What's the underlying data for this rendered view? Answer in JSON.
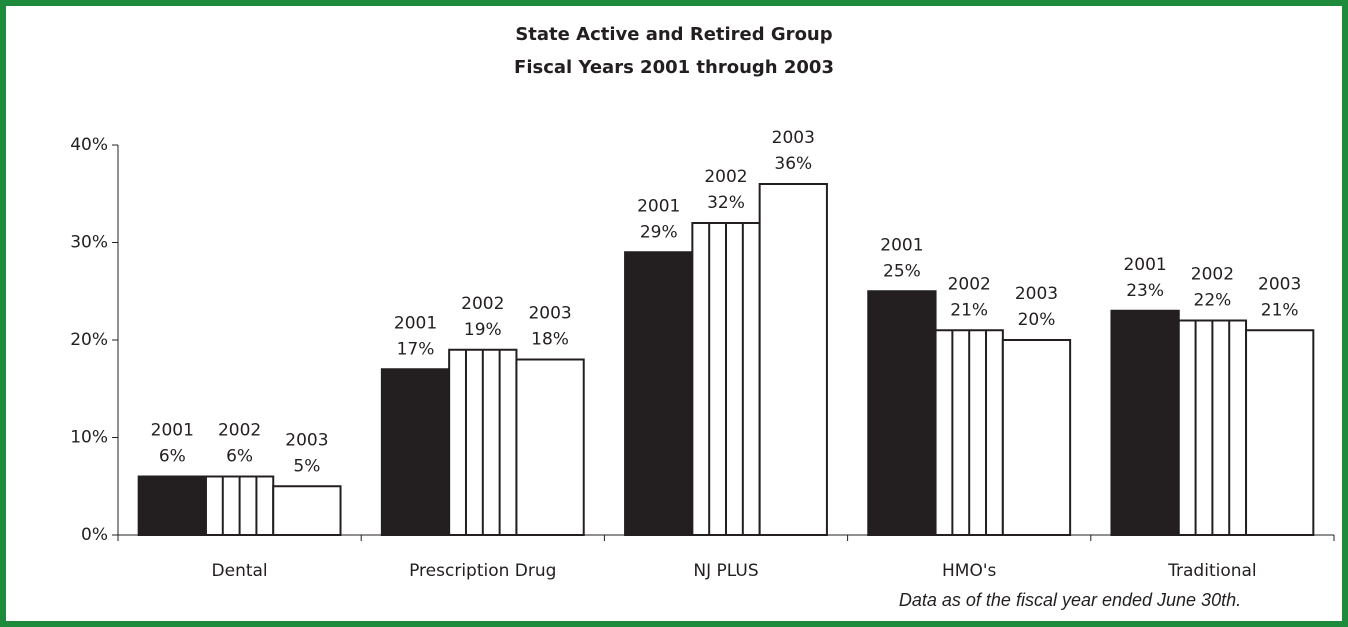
{
  "chart_data": {
    "type": "bar",
    "title": [
      "State Active and Retired Group",
      "Fiscal Years 2001 through 2003"
    ],
    "categories": [
      "Dental",
      "Prescription Drug",
      "NJ PLUS",
      "HMO's",
      "Traditional"
    ],
    "series": [
      {
        "name": "2001",
        "color": "#231f20",
        "pattern": "solid",
        "values": [
          6,
          17,
          29,
          25,
          23
        ],
        "value_labels": [
          "6%",
          "17%",
          "29%",
          "25%",
          "23%"
        ]
      },
      {
        "name": "2002",
        "color": "#ffffff",
        "pattern": "vertical-lines",
        "values": [
          6,
          19,
          32,
          21,
          22
        ],
        "value_labels": [
          "6%",
          "19%",
          "32%",
          "21%",
          "22%"
        ]
      },
      {
        "name": "2003",
        "color": "#ffffff",
        "pattern": "solid",
        "values": [
          5,
          18,
          36,
          20,
          21
        ],
        "value_labels": [
          "5%",
          "18%",
          "36%",
          "20%",
          "21%"
        ]
      }
    ],
    "ylim": [
      0,
      40
    ],
    "yticks": [
      {
        "value": 0,
        "label": "0%"
      },
      {
        "value": 10,
        "label": "10%"
      },
      {
        "value": 20,
        "label": "20%"
      },
      {
        "value": 30,
        "label": "30%"
      },
      {
        "value": 40,
        "label": "40%"
      }
    ],
    "grid": false,
    "annotation": "Data as of the fiscal year ended June 30th."
  }
}
